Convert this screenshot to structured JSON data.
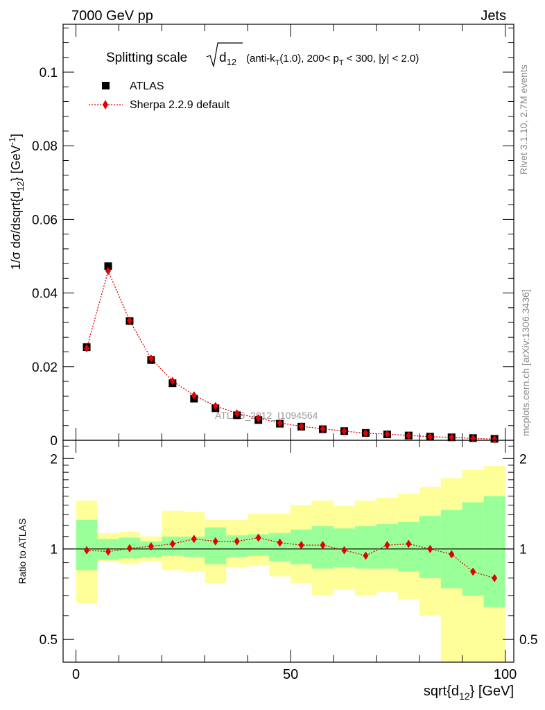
{
  "header": {
    "left": "7000 GeV pp",
    "right": "Jets"
  },
  "side_labels": {
    "rivet": "Rivet 3.1.10,  2.7M events",
    "site": "mcplots.cern.ch [arXiv:1306.3436]"
  },
  "chart_data": [
    {
      "type": "scatter",
      "panel": "main",
      "title": {
        "prefix": "Splitting scale",
        "sqrt_base": "d",
        "sqrt_sub": "12",
        "cond_pre": "(anti-k",
        "cond_sub1": "T",
        "cond_mid": "(1.0), 200< p",
        "cond_sub2": "T",
        "cond_post": " < 300, |y| < 2.0)"
      },
      "watermark": "ATLAS_2012_I1094564",
      "xlabel": {
        "main": "sqrt{d",
        "sub": "12",
        "end": "} [GeV]"
      },
      "ylabel": {
        "p1": "1/σ dσ/dsqrt{d",
        "sub": "12",
        "p2": "} [GeV",
        "sup": "-1",
        "p3": "]"
      },
      "xlim": [
        -3,
        102
      ],
      "ylim": [
        0,
        0.113
      ],
      "x_ticks": [
        0,
        50,
        100
      ],
      "y_ticks": [
        0,
        0.02,
        0.04,
        0.06,
        0.08,
        0.1
      ],
      "y_tick_labels": [
        "0",
        "0.02",
        "0.04",
        "0.06",
        "0.08",
        "0.1"
      ],
      "x": [
        2.5,
        7.5,
        12.5,
        17.5,
        22.5,
        27.5,
        32.5,
        37.5,
        42.5,
        47.5,
        52.5,
        57.5,
        62.5,
        67.5,
        72.5,
        77.5,
        82.5,
        87.5,
        92.5,
        97.5
      ],
      "legend_position": "top-left",
      "series": [
        {
          "name": "ATLAS",
          "color": "#000000",
          "marker": "square",
          "values": [
            0.0253,
            0.0473,
            0.0324,
            0.0218,
            0.0155,
            0.0113,
            0.0087,
            0.0068,
            0.0055,
            0.0045,
            0.0037,
            0.003,
            0.0025,
            0.002,
            0.0016,
            0.0013,
            0.001,
            0.0008,
            0.0006,
            0.0004
          ]
        },
        {
          "name": "Sherpa 2.2.9 default",
          "color": "#e00000",
          "marker": "diamond",
          "line": "dotted",
          "values": [
            0.025,
            0.046,
            0.0325,
            0.0222,
            0.0161,
            0.0122,
            0.0093,
            0.0073,
            0.006,
            0.0047,
            0.0038,
            0.0031,
            0.0025,
            0.0019,
            0.0017,
            0.0013,
            0.001,
            0.0008,
            0.0005,
            0.0003
          ]
        }
      ]
    },
    {
      "type": "scatter",
      "panel": "ratio",
      "ylabel": "Ratio to ATLAS",
      "ylog": true,
      "ylim": [
        0.42,
        2.3
      ],
      "y_ticks": [
        0.5,
        1,
        2
      ],
      "y_tick_labels": [
        "0.5",
        "1",
        "2"
      ],
      "x_tick_labels": [
        "0",
        "50",
        "100"
      ],
      "bands": {
        "x_edges": [
          0,
          5,
          10,
          15,
          20,
          25,
          30,
          35,
          40,
          45,
          50,
          55,
          60,
          65,
          70,
          75,
          80,
          85,
          90,
          95,
          100
        ],
        "yellow_color": "#ffff99",
        "green_color": "#99ff99",
        "yellow_lo": [
          0.66,
          0.91,
          0.89,
          0.91,
          0.85,
          0.84,
          0.77,
          0.87,
          0.88,
          0.81,
          0.77,
          0.7,
          0.73,
          0.7,
          0.72,
          0.68,
          0.6,
          0.41,
          0.37,
          0.37
        ],
        "yellow_hi": [
          1.45,
          1.13,
          1.14,
          1.1,
          1.34,
          1.33,
          1.25,
          1.25,
          1.31,
          1.31,
          1.4,
          1.45,
          1.39,
          1.45,
          1.48,
          1.53,
          1.61,
          1.72,
          1.83,
          1.89
        ],
        "green_lo": [
          0.85,
          0.92,
          0.93,
          0.94,
          0.95,
          0.94,
          0.89,
          0.94,
          0.95,
          0.91,
          0.89,
          0.86,
          0.87,
          0.86,
          0.86,
          0.84,
          0.8,
          0.74,
          0.7,
          0.64
        ],
        "green_hi": [
          1.25,
          1.08,
          1.09,
          1.06,
          1.1,
          1.1,
          1.18,
          1.11,
          1.12,
          1.13,
          1.16,
          1.19,
          1.17,
          1.19,
          1.21,
          1.23,
          1.29,
          1.35,
          1.43,
          1.5
        ]
      },
      "reference_line": 1,
      "x": [
        2.5,
        7.5,
        12.5,
        17.5,
        22.5,
        27.5,
        32.5,
        37.5,
        42.5,
        47.5,
        52.5,
        57.5,
        62.5,
        67.5,
        72.5,
        77.5,
        82.5,
        87.5,
        92.5,
        97.5
      ],
      "series": [
        {
          "name": "Sherpa 2.2.9 default",
          "color": "#e00000",
          "marker": "diamond",
          "line": "dotted",
          "values": [
            0.99,
            0.98,
            1.005,
            1.02,
            1.04,
            1.08,
            1.06,
            1.06,
            1.09,
            1.05,
            1.03,
            1.03,
            0.99,
            0.95,
            1.03,
            1.04,
            1.0,
            0.96,
            0.84,
            0.8
          ]
        }
      ]
    }
  ]
}
